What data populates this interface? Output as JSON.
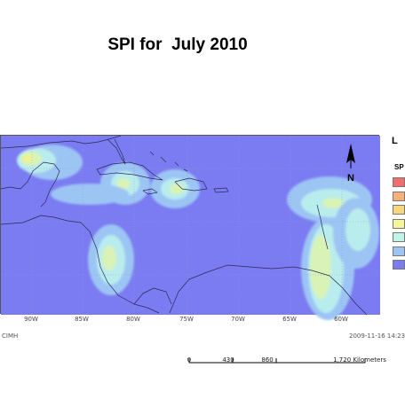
{
  "title": "SPI for  July 2010",
  "map": {
    "ocean_color": "#7b7bf2",
    "contour_colors": [
      "#8d98f4",
      "#9cc5f4",
      "#b9ecec",
      "#d9f3b6",
      "#f0f290"
    ],
    "longitude_labels": [
      "90W",
      "85W",
      "80W",
      "75W",
      "70W",
      "65W",
      "60W"
    ],
    "credit": "CIMH",
    "datestamp": "2009-11-16  14:23"
  },
  "north_arrow": {
    "label": "N"
  },
  "legend": {
    "title": "L",
    "subtitle": "SP",
    "swatch_colors": [
      "#f26d6d",
      "#f6b07a",
      "#f7d77b",
      "#f7f59a",
      "#bff4e8",
      "#9cc5f4",
      "#7b7bf2"
    ]
  },
  "scale_bar": {
    "labels": [
      "0",
      "430",
      "860",
      "1,720 Kilometers"
    ]
  }
}
